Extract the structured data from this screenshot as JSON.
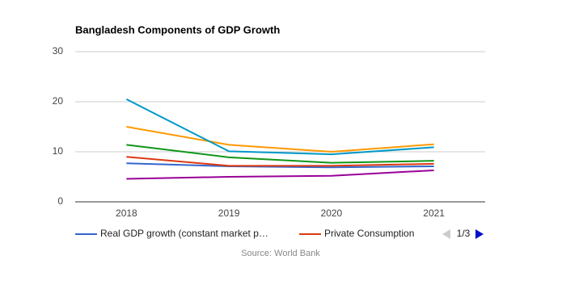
{
  "chart_data": {
    "type": "line",
    "title": "Bangladesh Components of GDP Growth",
    "categories": [
      "2018",
      "2019",
      "2020",
      "2021"
    ],
    "series": [
      {
        "name": "Real GDP growth (constant market p…",
        "color": "#3366cc",
        "values": [
          7.7,
          7.1,
          6.9,
          7.1
        ]
      },
      {
        "name": "Private Consumption",
        "color": "#dc3912",
        "values": [
          9.0,
          7.2,
          7.2,
          7.6
        ]
      },
      {
        "color": "#ff9900",
        "values": [
          15.0,
          11.4,
          10.0,
          11.5
        ]
      },
      {
        "color": "#109618",
        "values": [
          11.4,
          8.9,
          7.8,
          8.2
        ]
      },
      {
        "color": "#990099",
        "values": [
          4.6,
          5.0,
          5.2,
          6.3
        ]
      },
      {
        "color": "#0099c6",
        "values": [
          20.5,
          10.1,
          9.5,
          10.9
        ]
      }
    ],
    "ylim": [
      0,
      30
    ],
    "yticks": [
      0,
      10,
      20,
      30
    ],
    "grid": true,
    "legend_page": "1/3",
    "source": "Source: World Bank"
  }
}
